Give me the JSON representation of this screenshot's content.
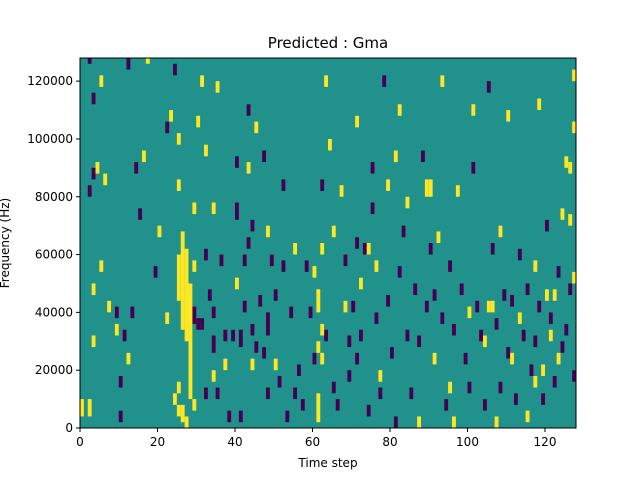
{
  "chart_data": {
    "type": "heatmap",
    "title": "Predicted : Gma",
    "xlabel": "Time step",
    "ylabel": "Frequency (Hz)",
    "xlim": [
      0,
      128
    ],
    "ylim": [
      0,
      128000
    ],
    "x_ticks": [
      0,
      20,
      40,
      60,
      80,
      100,
      120
    ],
    "x_tick_labels": [
      "0",
      "20",
      "40",
      "60",
      "80",
      "100",
      "120"
    ],
    "y_ticks": [
      0,
      20000,
      40000,
      60000,
      80000,
      100000,
      120000
    ],
    "y_tick_labels": [
      "0",
      "20000",
      "40000",
      "60000",
      "80000",
      "100000",
      "120000"
    ],
    "colormap": "viridis",
    "colors": {
      "background": "#21918c",
      "low": "#440154",
      "high": "#fde725"
    },
    "background_value": 0,
    "bin_width_hz": 2000,
    "bright_cells": [
      [
        0,
        4000,
        10000
      ],
      [
        2,
        4000,
        10000
      ],
      [
        3,
        46000,
        50000
      ],
      [
        3,
        28000,
        32000
      ],
      [
        4,
        88000,
        92000
      ],
      [
        5,
        118000,
        122000
      ],
      [
        5,
        54000,
        58000
      ],
      [
        6,
        84000,
        88000
      ],
      [
        7,
        40000,
        44000
      ],
      [
        9,
        32000,
        36000
      ],
      [
        12,
        22000,
        26000
      ],
      [
        16,
        92000,
        96000
      ],
      [
        17,
        126000,
        128000
      ],
      [
        20,
        66000,
        70000
      ],
      [
        22,
        36000,
        40000
      ],
      [
        23,
        106000,
        110000
      ],
      [
        24,
        8000,
        12000
      ],
      [
        25,
        98000,
        102000
      ],
      [
        25,
        82000,
        86000
      ],
      [
        25,
        44000,
        60000
      ],
      [
        26,
        34000,
        68000
      ],
      [
        25,
        12000,
        16000
      ],
      [
        25,
        4000,
        8000
      ],
      [
        27,
        30000,
        62000
      ],
      [
        28,
        10000,
        50000
      ],
      [
        26,
        2000,
        8000
      ],
      [
        27,
        0,
        4000
      ],
      [
        29,
        74000,
        78000
      ],
      [
        29,
        54000,
        58000
      ],
      [
        29,
        6000,
        10000
      ],
      [
        30,
        104000,
        108000
      ],
      [
        31,
        118000,
        122000
      ],
      [
        32,
        94000,
        98000
      ],
      [
        34,
        74000,
        78000
      ],
      [
        34,
        16000,
        20000
      ],
      [
        35,
        116000,
        120000
      ],
      [
        37,
        20000,
        24000
      ],
      [
        40,
        48000,
        52000
      ],
      [
        43,
        88000,
        92000
      ],
      [
        44,
        20000,
        24000
      ],
      [
        45,
        102000,
        106000
      ],
      [
        48,
        66000,
        70000
      ],
      [
        50,
        20000,
        24000
      ],
      [
        55,
        60000,
        64000
      ],
      [
        60,
        52000,
        56000
      ],
      [
        61,
        40000,
        48000
      ],
      [
        61,
        2000,
        12000
      ],
      [
        61,
        26000,
        30000
      ],
      [
        62,
        22000,
        26000
      ],
      [
        62,
        60000,
        64000
      ],
      [
        62,
        32000,
        36000
      ],
      [
        63,
        118000,
        122000
      ],
      [
        64,
        96000,
        100000
      ],
      [
        65,
        66000,
        70000
      ],
      [
        67,
        80000,
        84000
      ],
      [
        68,
        40000,
        44000
      ],
      [
        71,
        104000,
        108000
      ],
      [
        72,
        48000,
        52000
      ],
      [
        74,
        60000,
        64000
      ],
      [
        76,
        54000,
        58000
      ],
      [
        77,
        16000,
        20000
      ],
      [
        79,
        82000,
        86000
      ],
      [
        81,
        92000,
        96000
      ],
      [
        82,
        108000,
        112000
      ],
      [
        84,
        76000,
        80000
      ],
      [
        87,
        0,
        4000
      ],
      [
        89,
        80000,
        86000
      ],
      [
        90,
        80000,
        86000
      ],
      [
        91,
        22000,
        26000
      ],
      [
        92,
        64000,
        68000
      ],
      [
        93,
        118000,
        122000
      ],
      [
        95,
        12000,
        16000
      ],
      [
        96,
        0,
        4000
      ],
      [
        97,
        80000,
        84000
      ],
      [
        100,
        38000,
        42000
      ],
      [
        101,
        108000,
        112000
      ],
      [
        104,
        28000,
        32000
      ],
      [
        105,
        40000,
        44000
      ],
      [
        106,
        40000,
        44000
      ],
      [
        107,
        0,
        4000
      ],
      [
        108,
        66000,
        70000
      ],
      [
        110,
        106000,
        110000
      ],
      [
        111,
        22000,
        26000
      ],
      [
        113,
        36000,
        40000
      ],
      [
        115,
        2000,
        6000
      ],
      [
        117,
        14000,
        18000
      ],
      [
        117,
        54000,
        58000
      ],
      [
        118,
        110000,
        114000
      ],
      [
        119,
        18000,
        22000
      ],
      [
        120,
        44000,
        48000
      ],
      [
        121,
        30000,
        34000
      ],
      [
        122,
        44000,
        48000
      ],
      [
        123,
        22000,
        26000
      ],
      [
        124,
        72000,
        76000
      ],
      [
        125,
        90000,
        94000
      ],
      [
        126,
        70000,
        74000
      ],
      [
        126,
        88000,
        92000
      ],
      [
        127,
        50000,
        54000
      ],
      [
        127,
        120000,
        124000
      ],
      [
        127,
        102000,
        106000
      ]
    ],
    "dark_cells": [
      [
        2,
        126000,
        128000
      ],
      [
        2,
        80000,
        84000
      ],
      [
        3,
        86000,
        90000
      ],
      [
        3,
        112000,
        116000
      ],
      [
        9,
        38000,
        42000
      ],
      [
        10,
        14000,
        18000
      ],
      [
        10,
        2000,
        6000
      ],
      [
        11,
        30000,
        34000
      ],
      [
        12,
        124000,
        128000
      ],
      [
        13,
        38000,
        42000
      ],
      [
        14,
        88000,
        92000
      ],
      [
        15,
        72000,
        76000
      ],
      [
        19,
        52000,
        56000
      ],
      [
        22,
        102000,
        106000
      ],
      [
        24,
        122000,
        126000
      ],
      [
        29,
        36000,
        42000
      ],
      [
        30,
        34000,
        38000
      ],
      [
        31,
        34000,
        38000
      ],
      [
        32,
        10000,
        14000
      ],
      [
        32,
        58000,
        62000
      ],
      [
        33,
        44000,
        48000
      ],
      [
        34,
        26000,
        32000
      ],
      [
        34,
        38000,
        42000
      ],
      [
        35,
        10000,
        14000
      ],
      [
        36,
        56000,
        60000
      ],
      [
        37,
        30000,
        34000
      ],
      [
        38,
        2000,
        6000
      ],
      [
        39,
        30000,
        34000
      ],
      [
        40,
        90000,
        94000
      ],
      [
        40,
        72000,
        78000
      ],
      [
        41,
        2000,
        6000
      ],
      [
        41,
        28000,
        34000
      ],
      [
        42,
        56000,
        60000
      ],
      [
        42,
        40000,
        44000
      ],
      [
        43,
        108000,
        112000
      ],
      [
        43,
        62000,
        66000
      ],
      [
        44,
        68000,
        72000
      ],
      [
        44,
        32000,
        36000
      ],
      [
        45,
        26000,
        30000
      ],
      [
        46,
        42000,
        46000
      ],
      [
        47,
        92000,
        96000
      ],
      [
        47,
        24000,
        28000
      ],
      [
        48,
        32000,
        40000
      ],
      [
        48,
        10000,
        14000
      ],
      [
        49,
        56000,
        60000
      ],
      [
        50,
        44000,
        48000
      ],
      [
        51,
        14000,
        18000
      ],
      [
        52,
        82000,
        86000
      ],
      [
        52,
        54000,
        58000
      ],
      [
        53,
        2000,
        6000
      ],
      [
        54,
        38000,
        42000
      ],
      [
        55,
        10000,
        14000
      ],
      [
        56,
        18000,
        22000
      ],
      [
        57,
        6000,
        10000
      ],
      [
        58,
        54000,
        58000
      ],
      [
        59,
        38000,
        42000
      ],
      [
        60,
        22000,
        26000
      ],
      [
        62,
        82000,
        86000
      ],
      [
        63,
        30000,
        34000
      ],
      [
        65,
        12000,
        16000
      ],
      [
        66,
        6000,
        10000
      ],
      [
        68,
        56000,
        60000
      ],
      [
        69,
        28000,
        32000
      ],
      [
        69,
        16000,
        20000
      ],
      [
        70,
        40000,
        44000
      ],
      [
        71,
        22000,
        26000
      ],
      [
        71,
        62000,
        66000
      ],
      [
        72,
        30000,
        34000
      ],
      [
        73,
        60000,
        64000
      ],
      [
        74,
        4000,
        8000
      ],
      [
        75,
        88000,
        92000
      ],
      [
        75,
        74000,
        78000
      ],
      [
        76,
        36000,
        40000
      ],
      [
        77,
        10000,
        14000
      ],
      [
        78,
        118000,
        122000
      ],
      [
        79,
        42000,
        46000
      ],
      [
        80,
        24000,
        28000
      ],
      [
        81,
        0,
        4000
      ],
      [
        82,
        52000,
        56000
      ],
      [
        83,
        66000,
        70000
      ],
      [
        84,
        30000,
        34000
      ],
      [
        85,
        10000,
        14000
      ],
      [
        86,
        46000,
        50000
      ],
      [
        87,
        28000,
        32000
      ],
      [
        88,
        92000,
        96000
      ],
      [
        89,
        40000,
        44000
      ],
      [
        90,
        60000,
        64000
      ],
      [
        91,
        44000,
        48000
      ],
      [
        93,
        36000,
        40000
      ],
      [
        94,
        6000,
        10000
      ],
      [
        95,
        54000,
        58000
      ],
      [
        96,
        32000,
        36000
      ],
      [
        98,
        46000,
        50000
      ],
      [
        99,
        22000,
        26000
      ],
      [
        100,
        12000,
        16000
      ],
      [
        101,
        88000,
        92000
      ],
      [
        102,
        40000,
        44000
      ],
      [
        103,
        30000,
        34000
      ],
      [
        104,
        6000,
        10000
      ],
      [
        105,
        116000,
        120000
      ],
      [
        106,
        60000,
        64000
      ],
      [
        107,
        34000,
        38000
      ],
      [
        108,
        12000,
        16000
      ],
      [
        109,
        44000,
        48000
      ],
      [
        110,
        24000,
        28000
      ],
      [
        111,
        42000,
        46000
      ],
      [
        112,
        8000,
        12000
      ],
      [
        113,
        58000,
        62000
      ],
      [
        114,
        30000,
        34000
      ],
      [
        115,
        46000,
        50000
      ],
      [
        116,
        18000,
        22000
      ],
      [
        117,
        28000,
        32000
      ],
      [
        118,
        40000,
        44000
      ],
      [
        119,
        8000,
        12000
      ],
      [
        120,
        68000,
        72000
      ],
      [
        121,
        36000,
        40000
      ],
      [
        122,
        14000,
        18000
      ],
      [
        123,
        52000,
        56000
      ],
      [
        124,
        26000,
        30000
      ],
      [
        125,
        32000,
        36000
      ],
      [
        126,
        46000,
        50000
      ],
      [
        127,
        16000,
        20000
      ]
    ]
  }
}
